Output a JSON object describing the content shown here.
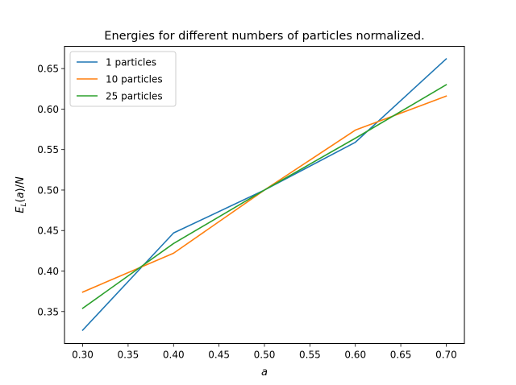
{
  "chart_data": {
    "type": "line",
    "title": "Energies for different numbers of particles normalized.",
    "xlabel": "a",
    "ylabel": "E_L(a)/N",
    "xlim": [
      0.28,
      0.72
    ],
    "ylim": [
      0.3105,
      0.6775
    ],
    "x": [
      0.3,
      0.4,
      0.5,
      0.6,
      0.7
    ],
    "xticks": [
      "0.30",
      "0.35",
      "0.40",
      "0.45",
      "0.50",
      "0.55",
      "0.60",
      "0.65",
      "0.70"
    ],
    "yticks": [
      "0.35",
      "0.40",
      "0.45",
      "0.50",
      "0.55",
      "0.60",
      "0.65"
    ],
    "grid": false,
    "legend_position": "top-left",
    "series": [
      {
        "name": "1 particles",
        "color": "#1f77b4",
        "values": [
          0.327,
          0.447,
          0.5,
          0.559,
          0.662
        ]
      },
      {
        "name": "10 particles",
        "color": "#ff7f0e",
        "values": [
          0.374,
          0.422,
          0.5,
          0.574,
          0.616
        ]
      },
      {
        "name": "25 particles",
        "color": "#2ca02c",
        "values": [
          0.354,
          0.434,
          0.5,
          0.564,
          0.63
        ]
      }
    ]
  }
}
